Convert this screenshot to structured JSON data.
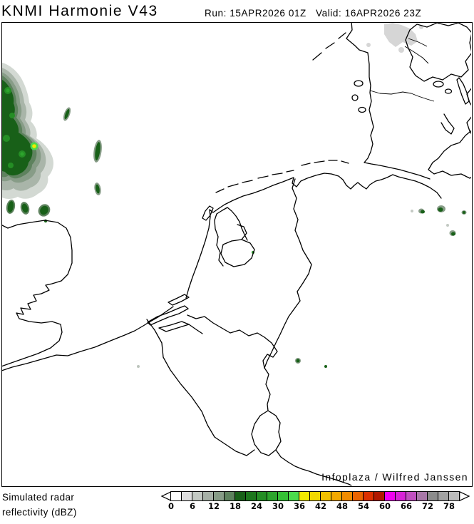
{
  "header": {
    "title": "KNMI Harmonie V43",
    "run_label": "Run:",
    "run_value": "15APR2026 01Z",
    "valid_label": "Valid:",
    "valid_value": "16APR2026 23Z"
  },
  "map": {
    "attribution": "Infoplaza / Wilfred Janssen",
    "region": "Netherlands, Belgium, north-west Germany, south-east England, Danish border area",
    "precipitation": {
      "max_dbz_spot": {
        "approx_dbz": 38,
        "location": "large shower cluster over the North Sea, north-west part of map"
      },
      "areas": [
        {
          "region": "North Sea off East Anglia (upper left)",
          "dbz_range": "3-38",
          "note": "large cluster, mostly 18-24 dBZ with gray fringes and one yellow 36-39 dBZ core"
        },
        {
          "region": "central North Sea",
          "dbz_range": "3-24",
          "note": "small elongated shower streaks"
        },
        {
          "region": "off UK coast (lower left of cluster)",
          "dbz_range": "12-24",
          "note": "several small cells"
        },
        {
          "region": "Schleswig / Danish border (top)",
          "dbz_range": "3-9",
          "note": "light gray patches"
        },
        {
          "region": "Germany (middle right)",
          "dbz_range": "3-24",
          "note": "a few tiny cells"
        },
        {
          "region": "south-east Netherlands / Germany border",
          "dbz_range": "12-24",
          "note": "two tiny dots"
        }
      ]
    }
  },
  "legend": {
    "label_line1": "Simulated radar",
    "label_line2": "reflectivity (dBZ)",
    "ticks": [
      0,
      6,
      12,
      18,
      24,
      30,
      36,
      42,
      48,
      54,
      60,
      66,
      72,
      78
    ],
    "cell_step_dbz": 3,
    "cells": [
      {
        "dbz_from": 0,
        "dbz_to": 3,
        "color": "#ffffff"
      },
      {
        "dbz_from": 3,
        "dbz_to": 6,
        "color": "#dedede"
      },
      {
        "dbz_from": 6,
        "dbz_to": 9,
        "color": "#c3c9c3"
      },
      {
        "dbz_from": 9,
        "dbz_to": 12,
        "color": "#a6b0a6"
      },
      {
        "dbz_from": 12,
        "dbz_to": 15,
        "color": "#879c87"
      },
      {
        "dbz_from": 15,
        "dbz_to": 18,
        "color": "#5e825e"
      },
      {
        "dbz_from": 18,
        "dbz_to": 21,
        "color": "#186018"
      },
      {
        "dbz_from": 21,
        "dbz_to": 24,
        "color": "#1d771d"
      },
      {
        "dbz_from": 24,
        "dbz_to": 27,
        "color": "#258e25"
      },
      {
        "dbz_from": 27,
        "dbz_to": 30,
        "color": "#2da52d"
      },
      {
        "dbz_from": 30,
        "dbz_to": 33,
        "color": "#35c035"
      },
      {
        "dbz_from": 33,
        "dbz_to": 36,
        "color": "#4cdb4c"
      },
      {
        "dbz_from": 36,
        "dbz_to": 39,
        "color": "#f2ea00"
      },
      {
        "dbz_from": 39,
        "dbz_to": 42,
        "color": "#f2d800"
      },
      {
        "dbz_from": 42,
        "dbz_to": 45,
        "color": "#f2c100"
      },
      {
        "dbz_from": 45,
        "dbz_to": 48,
        "color": "#f2a800"
      },
      {
        "dbz_from": 48,
        "dbz_to": 51,
        "color": "#f08c00"
      },
      {
        "dbz_from": 51,
        "dbz_to": 54,
        "color": "#ea6400"
      },
      {
        "dbz_from": 54,
        "dbz_to": 57,
        "color": "#dc3000"
      },
      {
        "dbz_from": 57,
        "dbz_to": 60,
        "color": "#b01800"
      },
      {
        "dbz_from": 60,
        "dbz_to": 63,
        "color": "#f000f0"
      },
      {
        "dbz_from": 63,
        "dbz_to": 66,
        "color": "#d822d8"
      },
      {
        "dbz_from": 66,
        "dbz_to": 69,
        "color": "#c050c0"
      },
      {
        "dbz_from": 69,
        "dbz_to": 72,
        "color": "#a878a8"
      },
      {
        "dbz_from": 72,
        "dbz_to": 75,
        "color": "#8c8c8c"
      },
      {
        "dbz_from": 75,
        "dbz_to": 78,
        "color": "#a2a2a2"
      },
      {
        "dbz_from": 78,
        "dbz_to": 81,
        "color": "#bcbcbc"
      }
    ],
    "arrow_fill": "#ffffff",
    "outline_color": "#000000"
  }
}
